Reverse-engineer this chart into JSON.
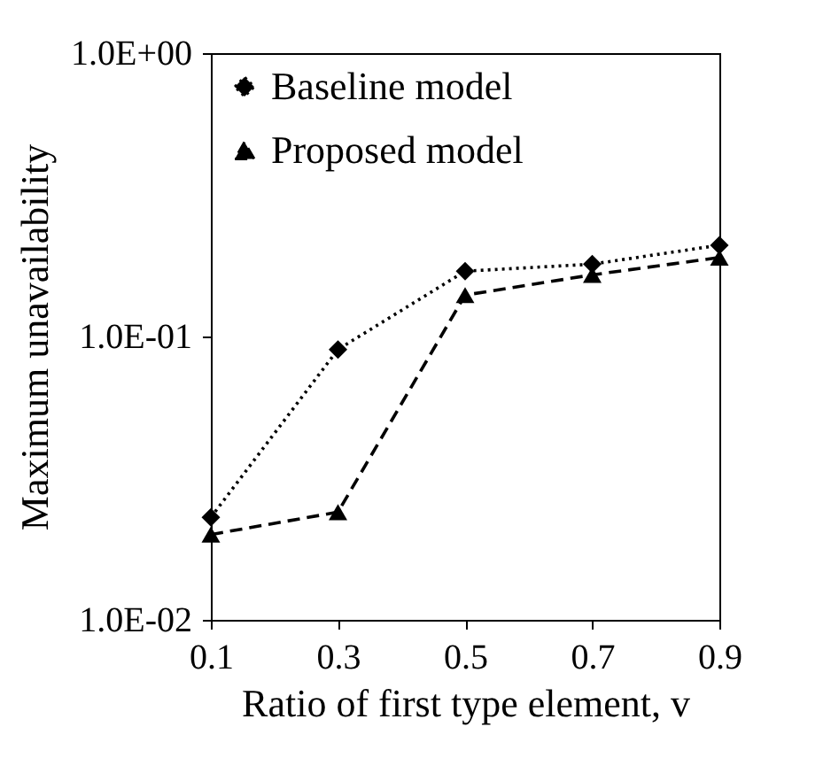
{
  "chart_data": {
    "type": "line",
    "xlabel": "Ratio of first type element, v",
    "ylabel": "Maximum unavailability",
    "x": [
      0.1,
      0.3,
      0.5,
      0.7,
      0.9
    ],
    "series": [
      {
        "name": "Baseline model",
        "color": "#000000",
        "marker": "diamond",
        "line_style": "dotted",
        "values": [
          0.023,
          0.09,
          0.17,
          0.18,
          0.21
        ]
      },
      {
        "name": "Proposed model",
        "color": "#000000",
        "marker": "triangle",
        "line_style": "dashed",
        "values": [
          0.02,
          0.024,
          0.14,
          0.165,
          0.19
        ]
      }
    ],
    "xlim": [
      0.1,
      0.9
    ],
    "xticks": [
      0.1,
      0.3,
      0.5,
      0.7,
      0.9
    ],
    "ylim": [
      0.01,
      1
    ],
    "yticks": [
      {
        "value": 0.01,
        "label": "1.0E-02"
      },
      {
        "value": 0.1,
        "label": "1.0E-01"
      },
      {
        "value": 1,
        "label": "1.0E+00"
      }
    ],
    "log": true,
    "grid": false,
    "legend": "top left"
  }
}
